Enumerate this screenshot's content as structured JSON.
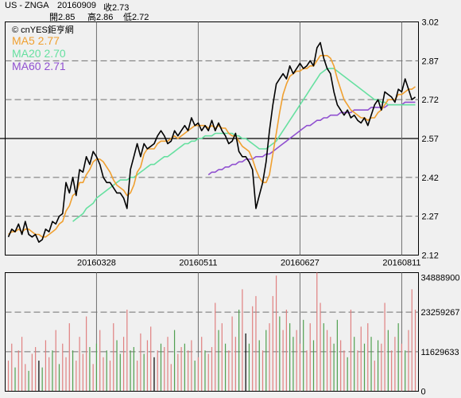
{
  "header": {
    "symbol": "US - ZNGA",
    "date": "20160909",
    "close_label": "收2.73",
    "open_label": "開2.85",
    "high_label": "高2.86",
    "low_label": "低2.72"
  },
  "watermark": "© cnYES鉅亨網",
  "colors": {
    "price": "#000000",
    "ma5": "#f0a030",
    "ma20": "#66e0a0",
    "ma60": "#9050d0",
    "vol_up": "#e08080",
    "vol_down": "#50a050",
    "vol_flat": "#000000",
    "grid": "#707070",
    "bg": "#f0f0f0"
  },
  "chart_data": [
    {
      "type": "line",
      "title": "",
      "legend": [
        {
          "name": "MA5 2.77",
          "color": "#f0a030"
        },
        {
          "name": "MA20 2.70",
          "color": "#66e0a0"
        },
        {
          "name": "MA60 2.71",
          "color": "#9050d0"
        }
      ],
      "legend_position": "top-left",
      "ylim": [
        2.12,
        3.02
      ],
      "y_ticks": [
        "3.02",
        "2.87",
        "2.72",
        "2.57",
        "2.42",
        "2.27",
        "2.12"
      ],
      "x_tick_labels": [
        {
          "index": 26,
          "label": "20160328"
        },
        {
          "index": 56,
          "label": "20160511"
        },
        {
          "index": 86,
          "label": "20160627"
        },
        {
          "index": 116,
          "label": "20160811"
        }
      ],
      "n": 121,
      "series": [
        {
          "name": "close",
          "values": [
            2.19,
            2.22,
            2.21,
            2.24,
            2.2,
            2.25,
            2.2,
            2.19,
            2.2,
            2.17,
            2.18,
            2.22,
            2.21,
            2.25,
            2.24,
            2.27,
            2.28,
            2.4,
            2.36,
            2.42,
            2.35,
            2.45,
            2.44,
            2.5,
            2.47,
            2.52,
            2.5,
            2.47,
            2.42,
            2.4,
            2.4,
            2.38,
            2.36,
            2.36,
            2.34,
            2.3,
            2.45,
            2.5,
            2.55,
            2.5,
            2.55,
            2.53,
            2.54,
            2.55,
            2.58,
            2.6,
            2.58,
            2.55,
            2.56,
            2.6,
            2.58,
            2.6,
            2.62,
            2.6,
            2.65,
            2.62,
            2.63,
            2.6,
            2.62,
            2.6,
            2.64,
            2.6,
            2.63,
            2.6,
            2.58,
            2.55,
            2.56,
            2.59,
            2.52,
            2.5,
            2.5,
            2.48,
            2.45,
            2.3,
            2.35,
            2.4,
            2.48,
            2.6,
            2.7,
            2.78,
            2.8,
            2.82,
            2.8,
            2.85,
            2.82,
            2.84,
            2.86,
            2.84,
            2.85,
            2.87,
            2.85,
            2.92,
            2.94,
            2.88,
            2.84,
            2.82,
            2.75,
            2.7,
            2.68,
            2.66,
            2.68,
            2.65,
            2.66,
            2.64,
            2.63,
            2.65,
            2.62,
            2.66,
            2.7,
            2.72,
            2.68,
            2.75,
            2.74,
            2.73,
            2.71,
            2.76,
            2.75,
            2.8,
            2.76,
            2.72,
            2.73
          ]
        },
        {
          "name": "MA5",
          "values": [
            2.2,
            2.21,
            2.21,
            2.22,
            2.21,
            2.22,
            2.22,
            2.21,
            2.2,
            2.2,
            2.19,
            2.19,
            2.2,
            2.21,
            2.22,
            2.24,
            2.25,
            2.29,
            2.31,
            2.35,
            2.36,
            2.4,
            2.4,
            2.43,
            2.45,
            2.48,
            2.49,
            2.49,
            2.48,
            2.46,
            2.44,
            2.41,
            2.39,
            2.38,
            2.37,
            2.35,
            2.36,
            2.39,
            2.44,
            2.46,
            2.51,
            2.53,
            2.53,
            2.53,
            2.55,
            2.56,
            2.56,
            2.56,
            2.57,
            2.58,
            2.57,
            2.58,
            2.59,
            2.6,
            2.61,
            2.62,
            2.62,
            2.62,
            2.62,
            2.61,
            2.62,
            2.61,
            2.62,
            2.61,
            2.61,
            2.59,
            2.58,
            2.58,
            2.56,
            2.54,
            2.53,
            2.52,
            2.49,
            2.45,
            2.42,
            2.4,
            2.4,
            2.43,
            2.51,
            2.59,
            2.67,
            2.74,
            2.78,
            2.81,
            2.82,
            2.83,
            2.83,
            2.84,
            2.84,
            2.85,
            2.85,
            2.87,
            2.89,
            2.89,
            2.89,
            2.88,
            2.85,
            2.8,
            2.76,
            2.72,
            2.7,
            2.68,
            2.67,
            2.66,
            2.65,
            2.65,
            2.64,
            2.65,
            2.65,
            2.67,
            2.68,
            2.7,
            2.72,
            2.72,
            2.72,
            2.74,
            2.74,
            2.75,
            2.76,
            2.76,
            2.77
          ]
        },
        {
          "name": "MA20",
          "values": [
            null,
            null,
            null,
            null,
            null,
            null,
            null,
            null,
            null,
            null,
            null,
            null,
            null,
            null,
            null,
            null,
            null,
            null,
            null,
            2.25,
            2.26,
            2.27,
            2.28,
            2.3,
            2.31,
            2.32,
            2.34,
            2.35,
            2.36,
            2.37,
            2.38,
            2.39,
            2.4,
            2.41,
            2.41,
            2.41,
            2.42,
            2.42,
            2.43,
            2.44,
            2.45,
            2.46,
            2.47,
            2.47,
            2.48,
            2.49,
            2.5,
            2.5,
            2.51,
            2.52,
            2.53,
            2.54,
            2.55,
            2.55,
            2.56,
            2.56,
            2.57,
            2.57,
            2.58,
            2.58,
            2.58,
            2.59,
            2.59,
            2.59,
            2.59,
            2.59,
            2.59,
            2.58,
            2.58,
            2.57,
            2.57,
            2.56,
            2.55,
            2.54,
            2.53,
            2.53,
            2.53,
            2.54,
            2.55,
            2.56,
            2.58,
            2.6,
            2.62,
            2.64,
            2.66,
            2.68,
            2.7,
            2.72,
            2.74,
            2.76,
            2.78,
            2.8,
            2.82,
            2.83,
            2.84,
            2.84,
            2.84,
            2.83,
            2.82,
            2.81,
            2.8,
            2.79,
            2.78,
            2.77,
            2.76,
            2.75,
            2.74,
            2.73,
            2.72,
            2.72,
            2.71,
            2.71,
            2.7,
            2.7,
            2.7,
            2.7,
            2.7,
            2.7,
            2.7,
            2.7,
            2.7
          ]
        },
        {
          "name": "MA60",
          "values": [
            null,
            null,
            null,
            null,
            null,
            null,
            null,
            null,
            null,
            null,
            null,
            null,
            null,
            null,
            null,
            null,
            null,
            null,
            null,
            null,
            null,
            null,
            null,
            null,
            null,
            null,
            null,
            null,
            null,
            null,
            null,
            null,
            null,
            null,
            null,
            null,
            null,
            null,
            null,
            null,
            null,
            null,
            null,
            null,
            null,
            null,
            null,
            null,
            null,
            null,
            null,
            null,
            null,
            null,
            null,
            null,
            null,
            null,
            null,
            2.43,
            2.44,
            2.44,
            2.45,
            2.45,
            2.46,
            2.46,
            2.47,
            2.47,
            2.48,
            2.48,
            2.49,
            2.49,
            2.49,
            2.5,
            2.5,
            2.5,
            2.51,
            2.51,
            2.52,
            2.53,
            2.54,
            2.55,
            2.56,
            2.57,
            2.58,
            2.59,
            2.6,
            2.61,
            2.62,
            2.62,
            2.63,
            2.64,
            2.64,
            2.65,
            2.65,
            2.66,
            2.66,
            2.66,
            2.67,
            2.67,
            2.67,
            2.67,
            2.68,
            2.68,
            2.68,
            2.68,
            2.68,
            2.69,
            2.69,
            2.69,
            2.69,
            2.69,
            2.7,
            2.7,
            2.7,
            2.7,
            2.7,
            2.71,
            2.71,
            2.71,
            2.71
          ]
        }
      ]
    },
    {
      "type": "bar",
      "title": "",
      "ylim": [
        0,
        34888900
      ],
      "y_ticks": [
        "34888900",
        "23259267",
        "11629633",
        "0"
      ],
      "values": [
        9,
        14,
        7,
        12,
        16,
        8,
        6,
        11,
        13,
        9,
        7,
        15,
        10,
        12,
        18,
        8,
        14,
        10,
        20,
        12,
        9,
        16,
        11,
        22,
        13,
        8,
        14,
        18,
        10,
        12,
        9,
        20,
        15,
        11,
        16,
        24,
        12,
        13,
        9,
        17,
        11,
        15,
        19,
        10,
        12,
        14,
        13,
        16,
        8,
        18,
        11,
        13,
        14,
        12,
        15,
        9,
        10,
        16,
        12,
        11,
        13,
        26,
        18,
        20,
        14,
        12,
        22,
        16,
        24,
        30,
        17,
        14,
        25,
        28,
        15,
        12,
        18,
        20,
        28,
        34,
        22,
        18,
        24,
        20,
        16,
        18,
        14,
        21,
        12,
        20,
        15,
        34.9,
        26,
        20,
        18,
        16,
        14,
        21,
        15,
        12,
        10,
        24,
        16,
        12,
        19,
        14,
        20,
        16,
        9,
        15,
        14,
        26,
        18,
        12,
        16,
        20,
        14,
        12,
        18,
        30,
        24
      ],
      "colors": [
        "u",
        "u",
        "d",
        "u",
        "u",
        "u",
        "d",
        "u",
        "u",
        "f",
        "d",
        "u",
        "u",
        "d",
        "u",
        "d",
        "u",
        "u",
        "u",
        "d",
        "u",
        "u",
        "u",
        "u",
        "d",
        "u",
        "d",
        "u",
        "u",
        "d",
        "u",
        "u",
        "d",
        "d",
        "u",
        "u",
        "d",
        "d",
        "u",
        "u",
        "d",
        "u",
        "u",
        "f",
        "u",
        "d",
        "u",
        "u",
        "u",
        "d",
        "u",
        "u",
        "d",
        "u",
        "u",
        "d",
        "u",
        "u",
        "d",
        "u",
        "u",
        "u",
        "d",
        "u",
        "d",
        "u",
        "u",
        "u",
        "d",
        "u",
        "f",
        "d",
        "u",
        "u",
        "d",
        "u",
        "d",
        "u",
        "u",
        "u",
        "d",
        "u",
        "u",
        "d",
        "d",
        "u",
        "u",
        "d",
        "u",
        "u",
        "d",
        "u",
        "u",
        "d",
        "u",
        "u",
        "d",
        "d",
        "u",
        "u",
        "d",
        "u",
        "d",
        "u",
        "u",
        "d",
        "u",
        "d",
        "u",
        "d",
        "u",
        "u",
        "d",
        "u",
        "u",
        "d",
        "u",
        "d",
        "u",
        "u",
        "u"
      ]
    }
  ]
}
